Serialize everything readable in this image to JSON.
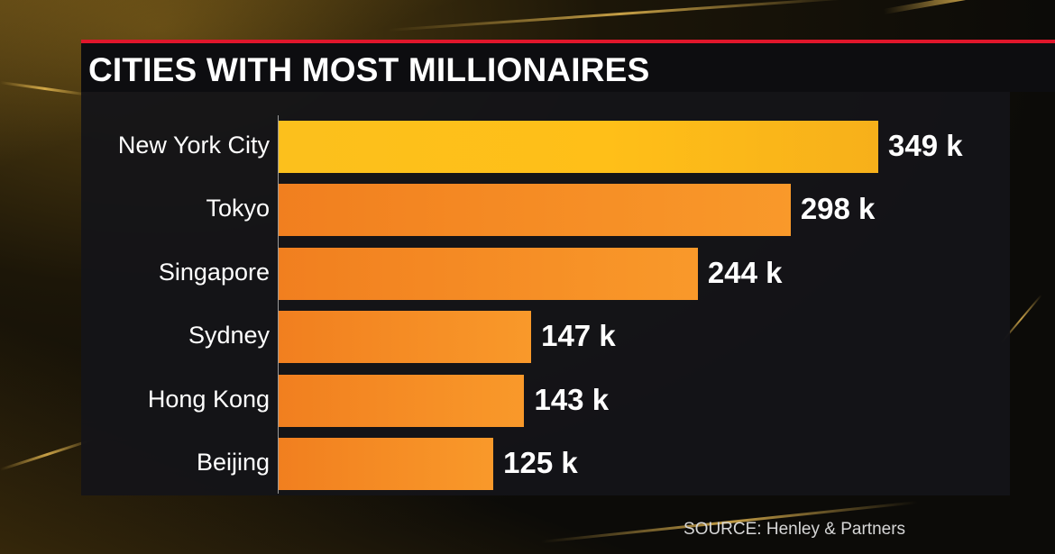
{
  "colors": {
    "accent_red": "#e0162b",
    "bar_orange": "#f28a24",
    "bar_highlight": "#fcbc1b"
  },
  "chart_data": {
    "type": "bar",
    "orientation": "horizontal",
    "title": "CITIES WITH MOST MILLIONAIRES",
    "categories": [
      "New York City",
      "Tokyo",
      "Singapore",
      "Sydney",
      "Hong Kong",
      "Beijing"
    ],
    "values": [
      349,
      298,
      244,
      147,
      143,
      125
    ],
    "value_labels": [
      "349 k",
      "298 k",
      "244 k",
      "147 k",
      "143 k",
      "125 k"
    ],
    "highlight": "New York City",
    "xlim": [
      0,
      349
    ],
    "grid": false,
    "legend": "none"
  },
  "footer": {
    "source": "SOURCE: Henley & Partners"
  }
}
